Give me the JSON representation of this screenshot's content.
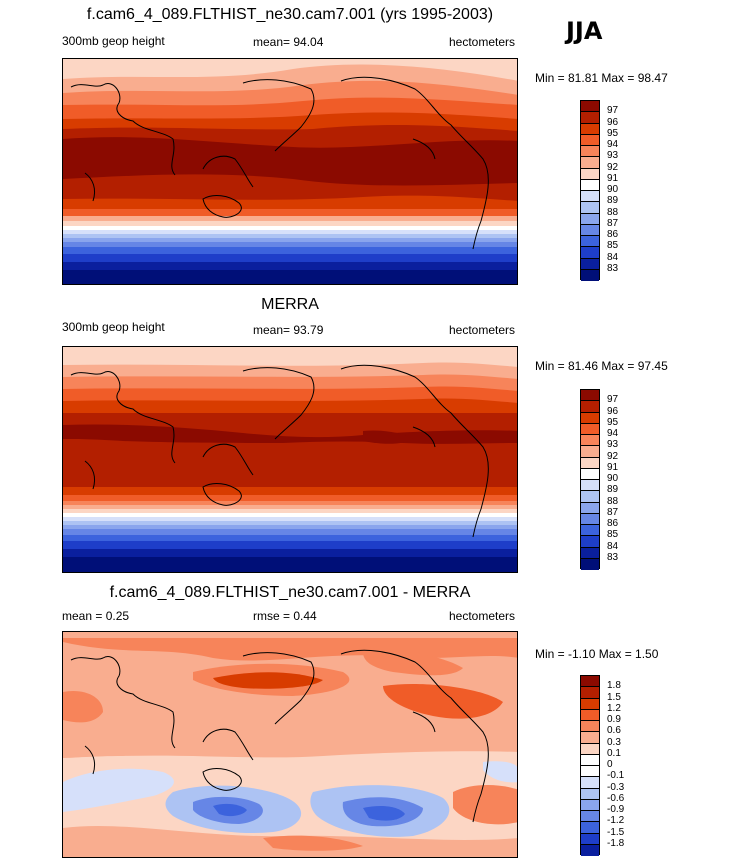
{
  "season": "JJA",
  "panels": [
    {
      "title": "f.cam6_4_089.FLTHIST_ne30.cam7.001 (yrs 1995-2003)",
      "left_label": "300mb geop height",
      "center_label": "mean=  94.04",
      "right_label": "hectometers",
      "minmax": "Min =  81.81 Max =  98.47"
    },
    {
      "title": "MERRA",
      "left_label": "300mb geop height",
      "center_label": "mean=  93.79",
      "right_label": "hectometers",
      "minmax": "Min =  81.46 Max =  97.45"
    },
    {
      "title": "f.cam6_4_089.FLTHIST_ne30.cam7.001 - MERRA",
      "left_label": "mean =   0.25",
      "center_label": "rmse =   0.44",
      "right_label": "hectometers",
      "minmax": "Min =  -1.10 Max =   1.50"
    }
  ],
  "colors": {
    "abs_scale": [
      "#8b0a00",
      "#b31f00",
      "#d83c00",
      "#f05c28",
      "#f7845a",
      "#f9ad8f",
      "#fcd6c4",
      "#ffffff",
      "#d6e0fa",
      "#adc3f3",
      "#8aa5ed",
      "#6686e6",
      "#3c63dd",
      "#1e3ec9",
      "#0a1f9e",
      "#000f78"
    ],
    "diff_scale": [
      "#8b0a00",
      "#b31f00",
      "#d83c00",
      "#f05c28",
      "#f7845a",
      "#f9ad8f",
      "#fcd6c4",
      "#ffffff",
      "#ffffff",
      "#d6e0fa",
      "#adc3f3",
      "#8aa5ed",
      "#6686e6",
      "#3c63dd",
      "#1e3ec9",
      "#0a1f9e",
      "#000f78"
    ],
    "coastline": "#000000"
  },
  "chart_data": [
    {
      "type": "heatmap",
      "title": "f.cam6_4_089.FLTHIST_ne30.cam7.001 (yrs 1995-2003)",
      "variable": "300mb geop height",
      "units": "hectometers",
      "mean": 94.04,
      "min": 81.81,
      "max": 98.47,
      "contour_levels": [
        97,
        96,
        95,
        94,
        93,
        92,
        91,
        90,
        89,
        88,
        87,
        86,
        85,
        84,
        83
      ],
      "season": "JJA"
    },
    {
      "type": "heatmap",
      "title": "MERRA",
      "variable": "300mb geop height",
      "units": "hectometers",
      "mean": 93.79,
      "min": 81.46,
      "max": 97.45,
      "contour_levels": [
        97,
        96,
        95,
        94,
        93,
        92,
        91,
        90,
        89,
        88,
        87,
        86,
        85,
        84,
        83
      ],
      "season": "JJA"
    },
    {
      "type": "heatmap",
      "title": "f.cam6_4_089.FLTHIST_ne30.cam7.001 - MERRA",
      "units": "hectometers",
      "mean": 0.25,
      "rmse": 0.44,
      "min": -1.1,
      "max": 1.5,
      "contour_levels": [
        1.8,
        1.5,
        1.2,
        0.9,
        0.6,
        0.3,
        0.1,
        0,
        -0.1,
        -0.3,
        -0.6,
        -0.9,
        -1.2,
        -1.5,
        -1.8
      ],
      "season": "JJA"
    }
  ]
}
